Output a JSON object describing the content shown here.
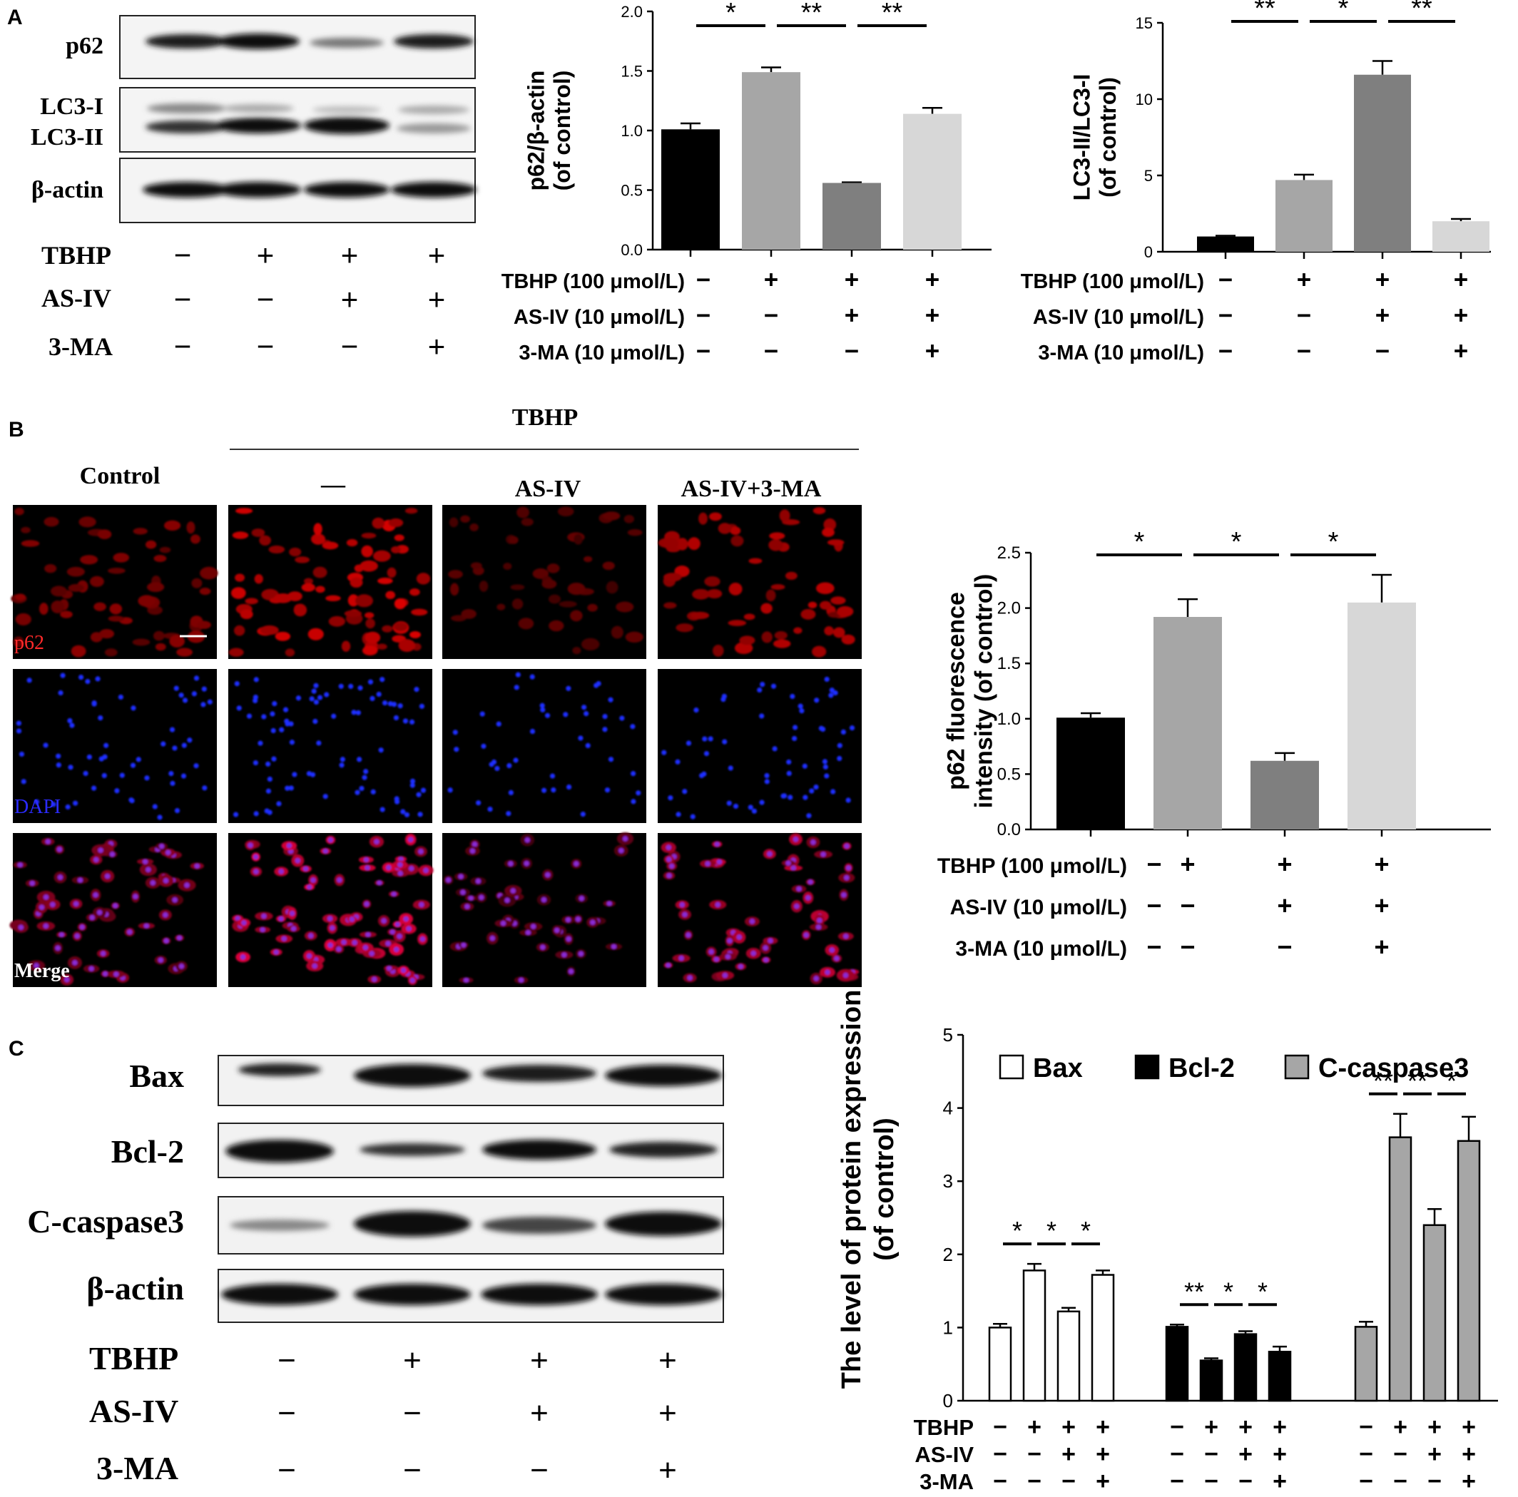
{
  "panel_labels": [
    "A",
    "B",
    "C"
  ],
  "panelA": {
    "blot_labels": [
      "p62",
      "LC3-I",
      "LC3-II",
      "β-actin"
    ],
    "treat_rows": [
      {
        "name": "TBHP",
        "signs": [
          "−",
          "+",
          "+",
          "+"
        ]
      },
      {
        "name": "AS-IV",
        "signs": [
          "−",
          "−",
          "+",
          "+"
        ]
      },
      {
        "name": "3-MA",
        "signs": [
          "−",
          "−",
          "−",
          "+"
        ]
      }
    ]
  },
  "panelB": {
    "group_title": "TBHP",
    "col_headers": [
      "Control",
      "—",
      "AS-IV",
      "AS-IV+3-MA"
    ],
    "row_labels": [
      "p62",
      "DAPI",
      "Merge"
    ],
    "row_label_colors": [
      "#ff2a2a",
      "#2b2bff",
      "#ffffff"
    ]
  },
  "panelC": {
    "blot_labels": [
      "Bax",
      "Bcl-2",
      "C-caspase3",
      "β-actin"
    ],
    "treat_rows": [
      {
        "name": "TBHP",
        "signs": [
          "−",
          "+",
          "+",
          "+"
        ]
      },
      {
        "name": "AS-IV",
        "signs": [
          "−",
          "−",
          "+",
          "+"
        ]
      },
      {
        "name": "3-MA",
        "signs": [
          "−",
          "−",
          "−",
          "+"
        ]
      }
    ]
  },
  "chart_data": [
    {
      "type": "bar",
      "ylabel": "p62/β-actin\n(of control)",
      "ylim": [
        0,
        2.0
      ],
      "yticks": [
        "0.0",
        "0.5",
        "1.0",
        "1.5",
        "2.0"
      ],
      "values": [
        1.01,
        1.49,
        0.56,
        1.14
      ],
      "errors": [
        0.05,
        0.04,
        0.005,
        0.05
      ],
      "colors": [
        "#000000",
        "#a6a6a6",
        "#7f7f7f",
        "#d7d7d7"
      ],
      "significance": [
        "*",
        "**",
        "**"
      ],
      "treatments": [
        {
          "name": "TBHP (100 μmol/L)",
          "signs": [
            "−",
            "+",
            "+",
            "+"
          ]
        },
        {
          "name": "AS-IV (10 μmol/L)",
          "signs": [
            "−",
            "−",
            "+",
            "+"
          ]
        },
        {
          "name": "3-MA (10 μmol/L)",
          "signs": [
            "−",
            "−",
            "−",
            "+"
          ]
        }
      ]
    },
    {
      "type": "bar",
      "ylabel": "LC3-II/LC3-I\n(of control)",
      "ylim": [
        0,
        15
      ],
      "yticks": [
        "0",
        "5",
        "10",
        "15"
      ],
      "values": [
        1.0,
        4.7,
        11.6,
        2.0
      ],
      "errors": [
        0.05,
        0.35,
        0.9,
        0.15
      ],
      "colors": [
        "#000000",
        "#a6a6a6",
        "#7f7f7f",
        "#d7d7d7"
      ],
      "significance": [
        "**",
        "*",
        "**"
      ],
      "treatments": [
        {
          "name": "TBHP (100 μmol/L)",
          "signs": [
            "−",
            "+",
            "+",
            "+"
          ]
        },
        {
          "name": "AS-IV (10 μmol/L)",
          "signs": [
            "−",
            "−",
            "+",
            "+"
          ]
        },
        {
          "name": "3-MA (10 μmol/L)",
          "signs": [
            "−",
            "−",
            "−",
            "+"
          ]
        }
      ]
    },
    {
      "type": "bar",
      "ylabel": "p62 fluorescence\nintensity (of control)",
      "ylim": [
        0,
        2.5
      ],
      "yticks": [
        "0.0",
        "0.5",
        "1.0",
        "1.5",
        "2.0",
        "2.5"
      ],
      "values": [
        1.01,
        1.92,
        0.62,
        2.05
      ],
      "errors": [
        0.04,
        0.16,
        0.07,
        0.25
      ],
      "colors": [
        "#000000",
        "#a6a6a6",
        "#7f7f7f",
        "#d7d7d7"
      ],
      "significance": [
        "*",
        "*",
        "*"
      ],
      "treatments": [
        {
          "name": "TBHP (100 μmol/L)",
          "signs": [
            "−",
            "+",
            "+",
            "+"
          ]
        },
        {
          "name": "AS-IV (10 μmol/L)",
          "signs": [
            "−",
            "−",
            "+",
            "+"
          ]
        },
        {
          "name": "3-MA (10 μmol/L)",
          "signs": [
            "−",
            "−",
            "−",
            "+"
          ]
        }
      ]
    },
    {
      "type": "bar",
      "ylabel": "The level of protein expression\n(of control)",
      "ylim": [
        0,
        5
      ],
      "yticks": [
        "0",
        "1",
        "2",
        "3",
        "4",
        "5"
      ],
      "legend": "top",
      "series": [
        {
          "name": "Bax",
          "color": "#ffffff",
          "values": [
            1.0,
            1.78,
            1.22,
            1.72
          ],
          "errors": [
            0.05,
            0.09,
            0.05,
            0.06
          ],
          "significance": [
            "*",
            "*",
            "*"
          ]
        },
        {
          "name": "Bcl-2",
          "color": "#000000",
          "values": [
            1.01,
            0.55,
            0.91,
            0.67
          ],
          "errors": [
            0.03,
            0.03,
            0.04,
            0.07
          ],
          "significance": [
            "**",
            "*",
            "*"
          ]
        },
        {
          "name": "C-caspase3",
          "color": "#a6a6a6",
          "values": [
            1.01,
            3.6,
            2.4,
            3.55
          ],
          "errors": [
            0.07,
            0.32,
            0.22,
            0.33
          ],
          "significance": [
            "**",
            "**",
            "*"
          ]
        }
      ],
      "treatments": [
        {
          "name": "TBHP",
          "signs": [
            "−",
            "+",
            "+",
            "+"
          ]
        },
        {
          "name": "AS-IV",
          "signs": [
            "−",
            "−",
            "+",
            "+"
          ]
        },
        {
          "name": "3-MA",
          "signs": [
            "−",
            "−",
            "−",
            "+"
          ]
        }
      ]
    }
  ]
}
